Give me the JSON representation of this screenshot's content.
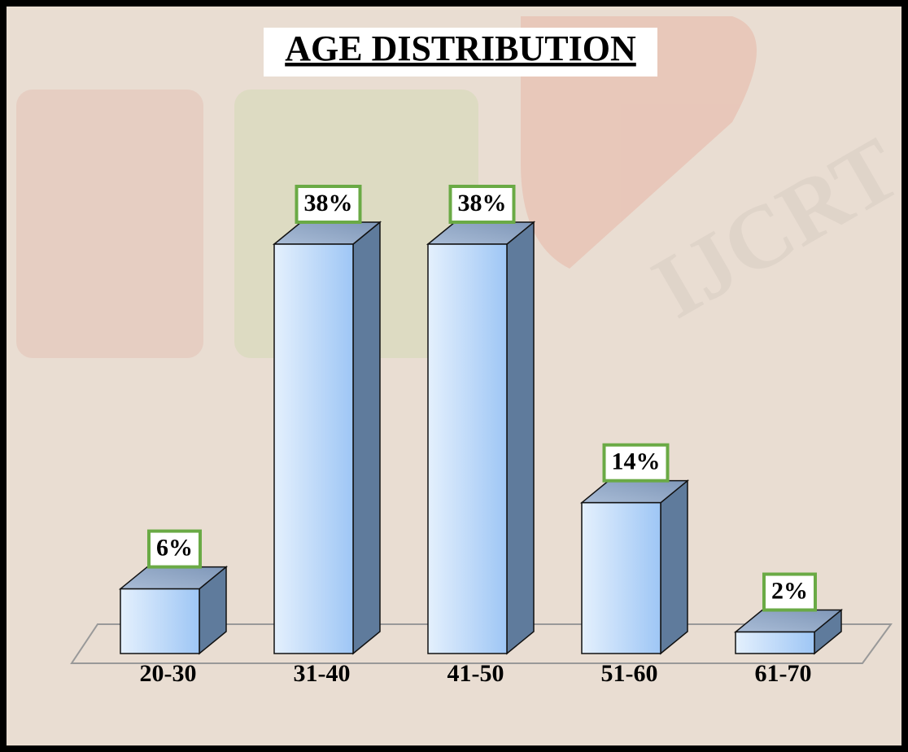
{
  "chart_data": {
    "type": "bar3d",
    "title": "AGE DISTRIBUTION",
    "categories": [
      "20-30",
      "31-40",
      "41-50",
      "51-60",
      "61-70"
    ],
    "values": [
      6,
      38,
      38,
      14,
      2
    ],
    "value_labels": [
      "6%",
      "38%",
      "38%",
      "14%",
      "2%"
    ],
    "color": "#a9cdf7"
  }
}
